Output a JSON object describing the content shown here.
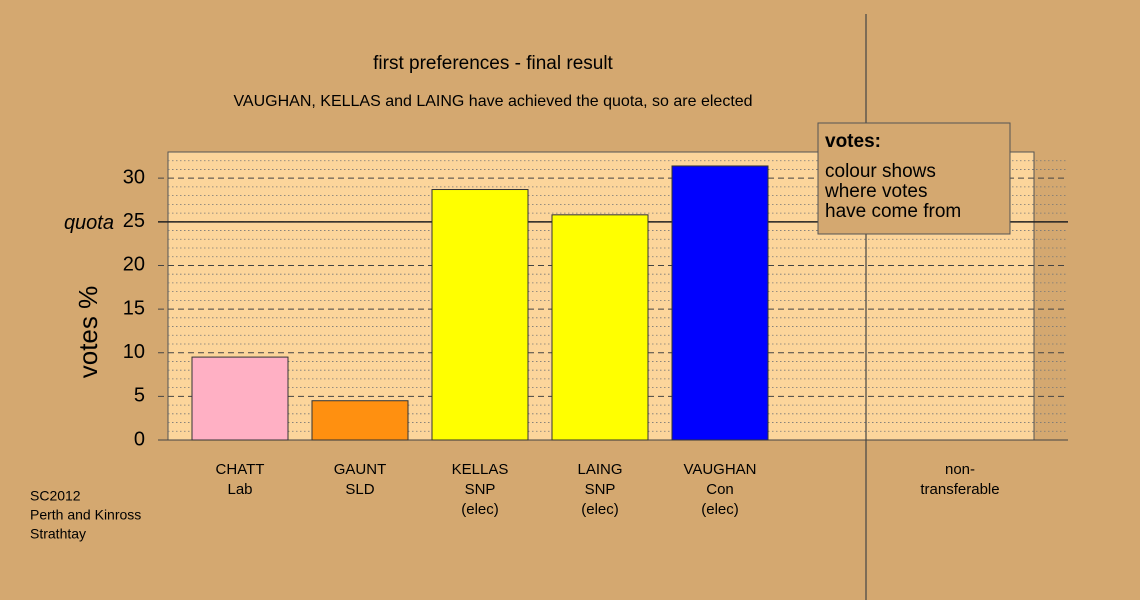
{
  "chart_data": {
    "type": "bar",
    "title": "first preferences - final result",
    "subtitle": "VAUGHAN, KELLAS and LAING have achieved the quota, so are elected",
    "y_label": "votes %",
    "categories": [
      [
        "CHATT",
        "Lab"
      ],
      [
        "GAUNT",
        "SLD"
      ],
      [
        "KELLAS",
        "SNP",
        "(elec)"
      ],
      [
        "LAING",
        "SNP",
        "(elec)"
      ],
      [
        "VAUGHAN",
        "Con",
        "(elec)"
      ],
      null,
      [
        "non-",
        "transferable"
      ]
    ],
    "values": [
      9.5,
      4.5,
      28.7,
      25.8,
      31.4,
      null,
      0
    ],
    "colors": [
      "#ffb0c4",
      "#ff9010",
      "#ffff00",
      "#ffff00",
      "#0000ff",
      null,
      "#d4a870"
    ],
    "ylim": [
      0,
      33
    ],
    "yticks": [
      0,
      5,
      10,
      15,
      20,
      25,
      30
    ],
    "minor_yticks": [
      1,
      2,
      3,
      4,
      6,
      7,
      8,
      9,
      11,
      12,
      13,
      14,
      16,
      17,
      18,
      19,
      21,
      22,
      23,
      24,
      26,
      27,
      28,
      29,
      31,
      32
    ],
    "grid": true,
    "quota": 25,
    "quota_label": "quota",
    "legend": {
      "title": "votes:",
      "lines": [
        "colour shows",
        "where votes",
        "have come from"
      ]
    },
    "footnote": [
      "SC2012",
      "Perth and Kinross",
      "Strathtay"
    ]
  }
}
